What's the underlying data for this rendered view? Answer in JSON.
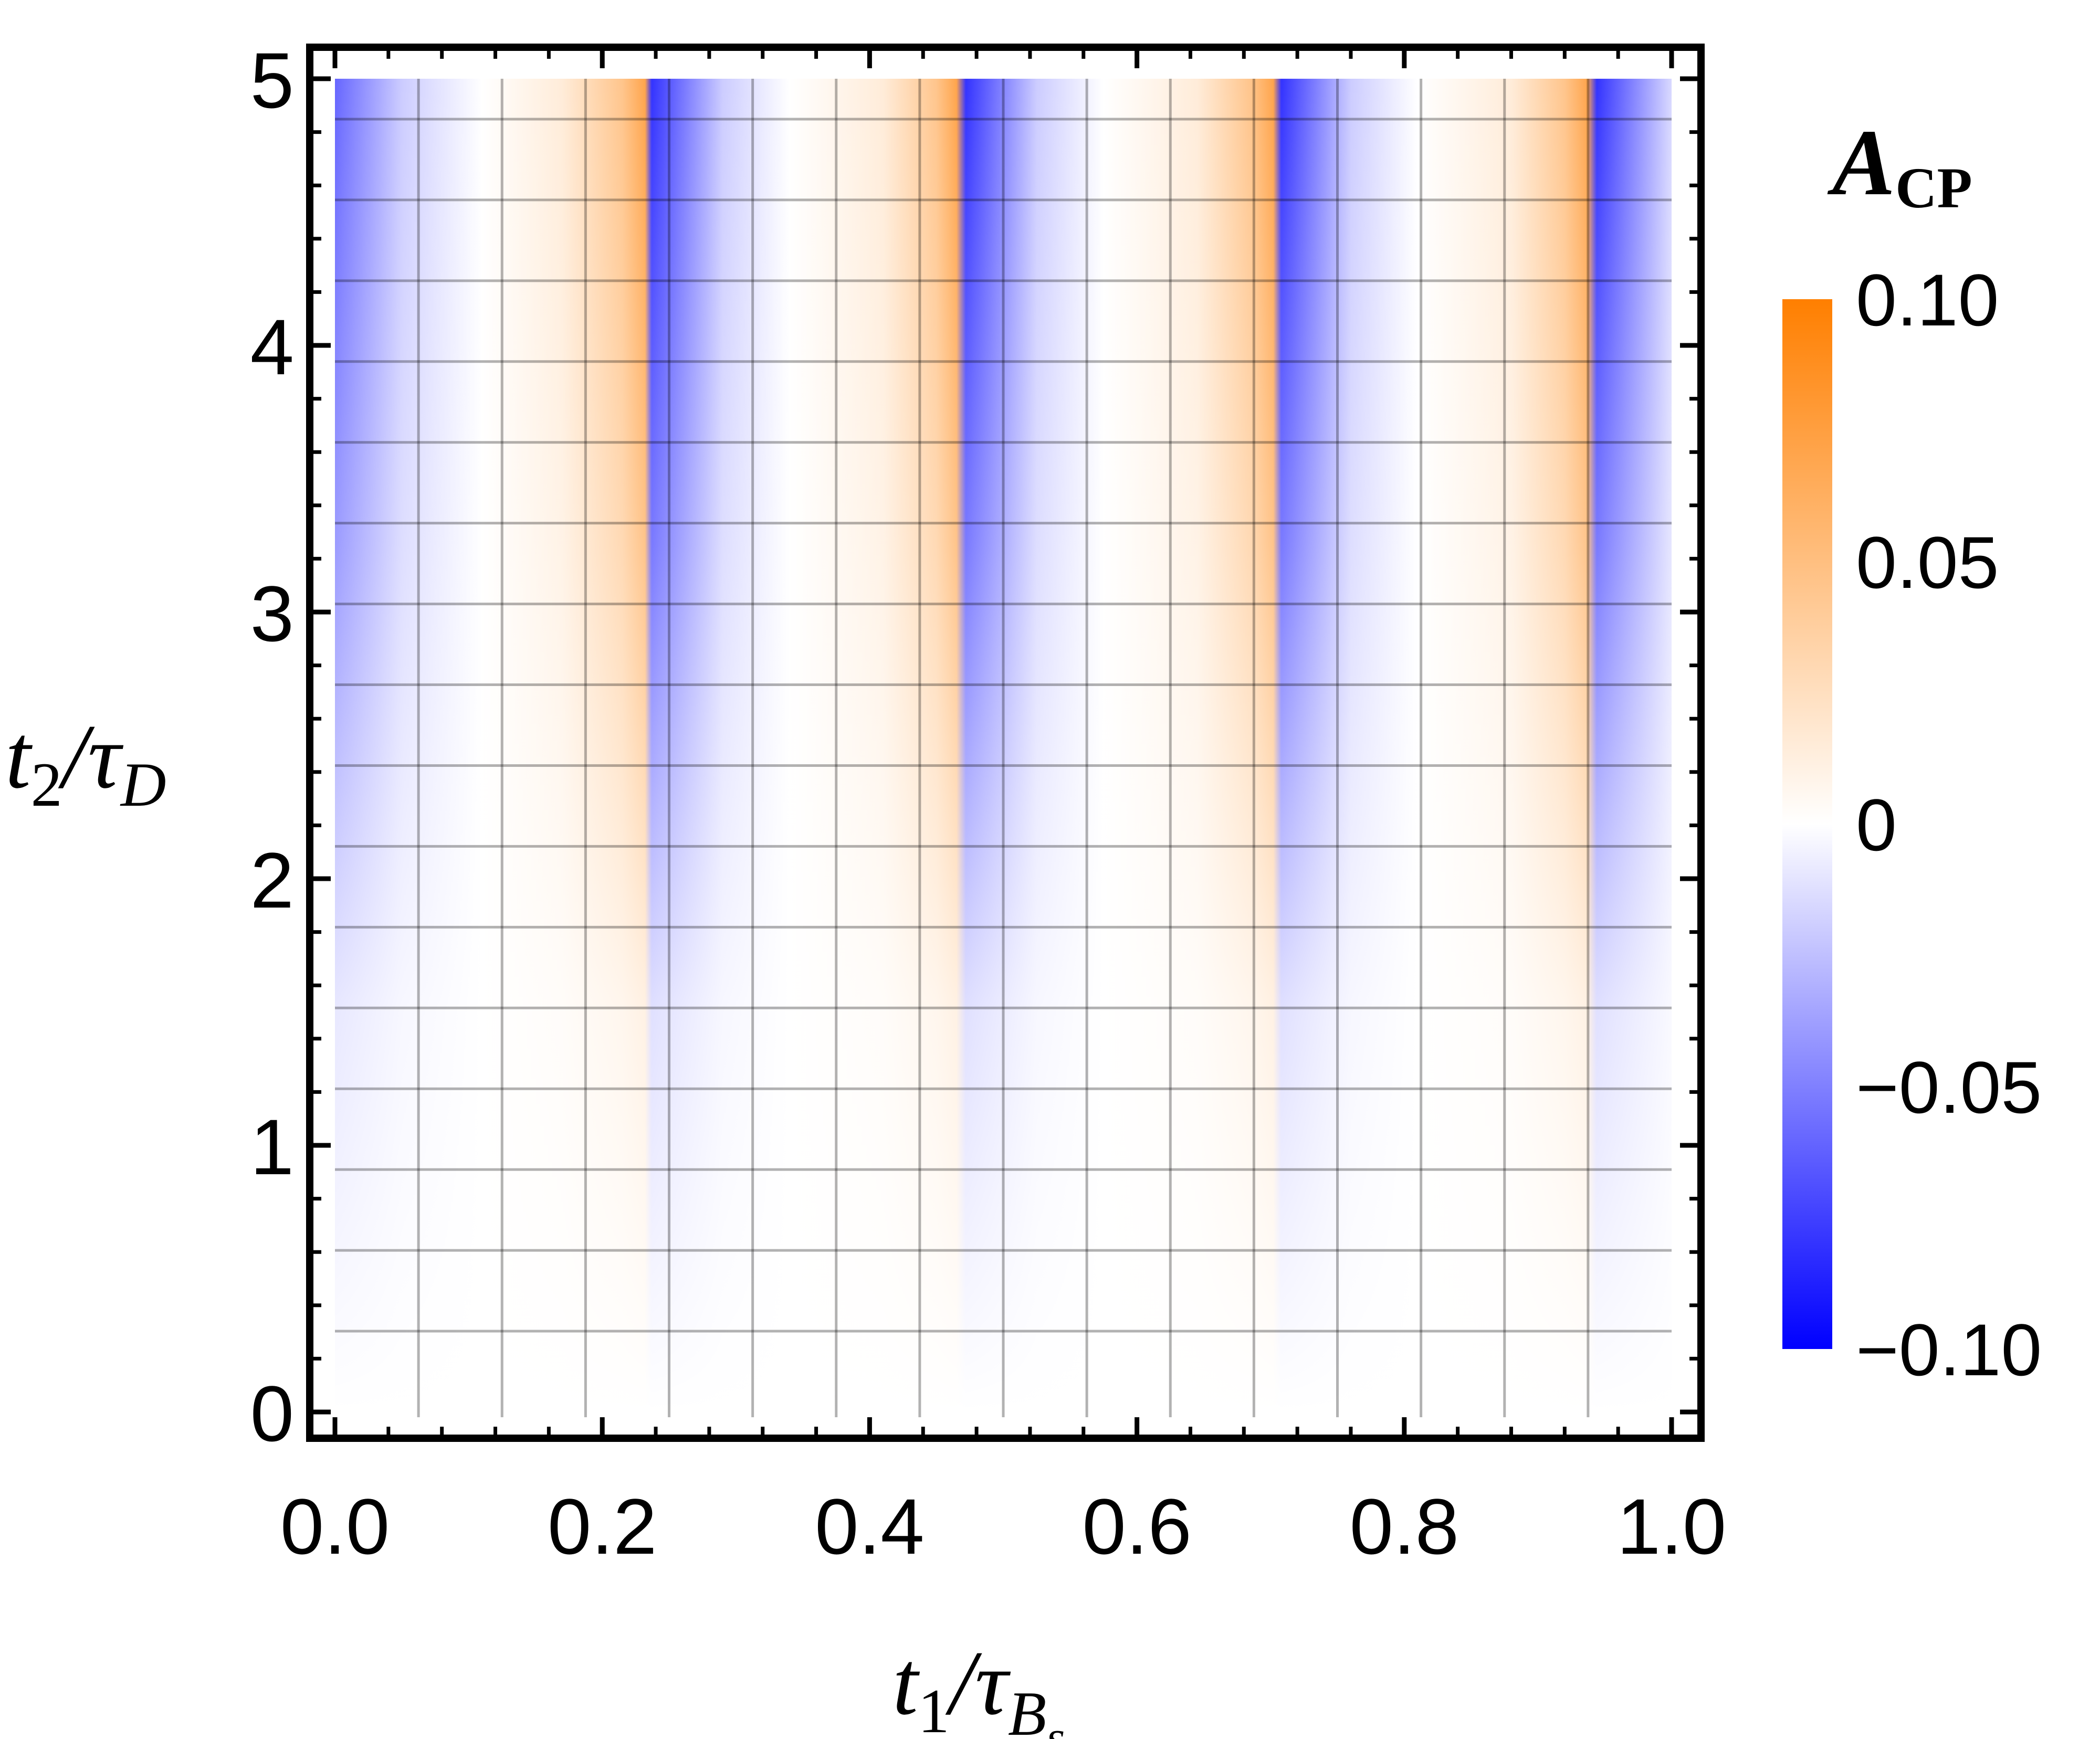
{
  "chart_data": {
    "type": "heatmap",
    "x": {
      "ticks": [
        "0.0",
        "0.2",
        "0.4",
        "0.6",
        "0.8",
        "1.0"
      ],
      "range": [
        0,
        1
      ],
      "label": {
        "main": "t",
        "sub": "1",
        "mid": "/τ",
        "sub2": "B",
        "sub3": "s"
      }
    },
    "y": {
      "ticks": [
        "0",
        "1",
        "2",
        "3",
        "4",
        "5"
      ],
      "range": [
        0,
        5
      ],
      "label": {
        "main": "t",
        "sub": "2",
        "mid": "/τ",
        "sub2": "D"
      }
    },
    "grid": true,
    "value_range": [
      -0.1,
      0.1
    ],
    "colorbar": {
      "title": {
        "main": "A",
        "sub": "CP"
      },
      "ticks": [
        "0.10",
        "0.05",
        "0",
        "−0.05",
        "−0.10"
      ],
      "colors": {
        "negative": "#0000ff",
        "zero": "#ffffff",
        "positive": "#ff7f00"
      }
    },
    "z_description": "amplitude grows with t2; oscillates along t1 with sawtooth period ~0.235",
    "stripe_profile": [
      {
        "t1": 0.0,
        "value": -0.06
      },
      {
        "t1": 0.05,
        "value": -0.02
      },
      {
        "t1": 0.11,
        "value": 0.0
      },
      {
        "t1": 0.17,
        "value": 0.015
      },
      {
        "t1": 0.215,
        "value": 0.045
      },
      {
        "t1": 0.232,
        "value": 0.07
      },
      {
        "t1": 0.237,
        "value": -0.08
      },
      {
        "t1": 0.29,
        "value": -0.02
      },
      {
        "t1": 0.34,
        "value": 0.0
      },
      {
        "t1": 0.41,
        "value": 0.015
      },
      {
        "t1": 0.45,
        "value": 0.045
      },
      {
        "t1": 0.465,
        "value": 0.07
      },
      {
        "t1": 0.472,
        "value": -0.08
      },
      {
        "t1": 0.525,
        "value": -0.02
      },
      {
        "t1": 0.575,
        "value": 0.0
      },
      {
        "t1": 0.645,
        "value": 0.015
      },
      {
        "t1": 0.685,
        "value": 0.045
      },
      {
        "t1": 0.702,
        "value": 0.07
      },
      {
        "t1": 0.708,
        "value": -0.08
      },
      {
        "t1": 0.76,
        "value": -0.02
      },
      {
        "t1": 0.81,
        "value": 0.0
      },
      {
        "t1": 0.88,
        "value": 0.015
      },
      {
        "t1": 0.92,
        "value": 0.045
      },
      {
        "t1": 0.937,
        "value": 0.07
      },
      {
        "t1": 0.944,
        "value": -0.08
      },
      {
        "t1": 1.0,
        "value": -0.015
      }
    ]
  }
}
